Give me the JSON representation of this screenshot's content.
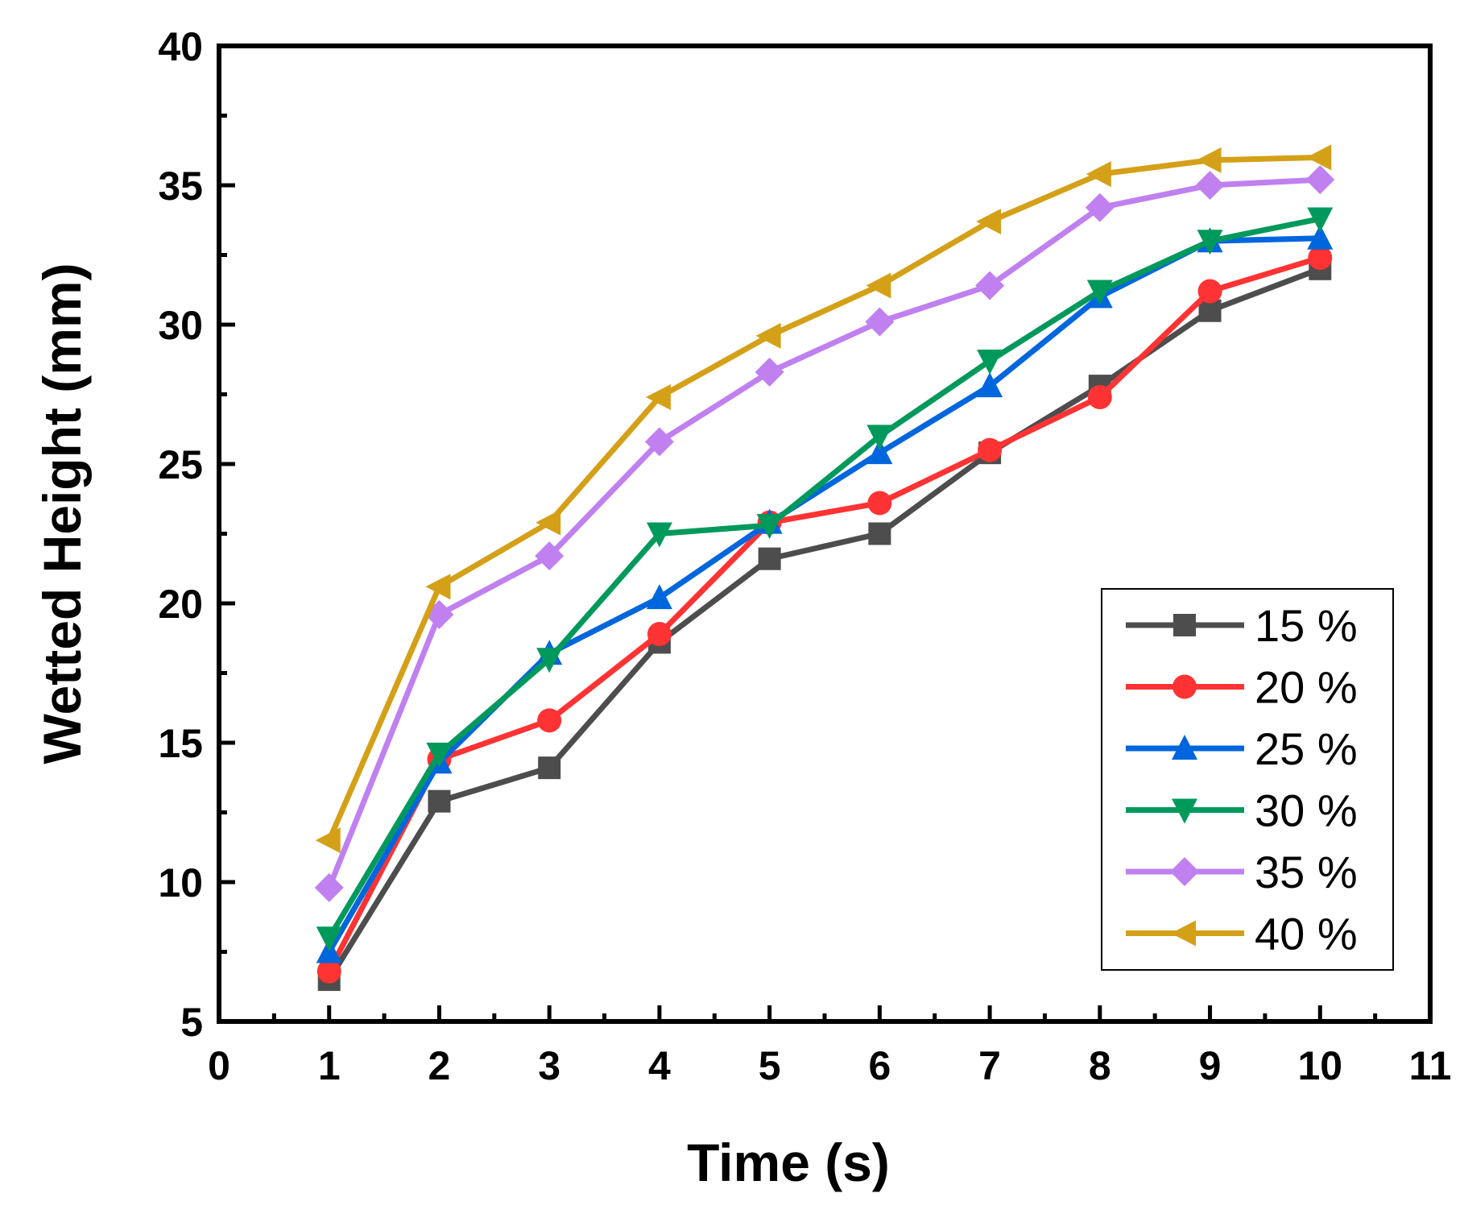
{
  "chart_data": {
    "type": "line",
    "xlabel": "Time (s)",
    "ylabel": "Wetted Height (mm)",
    "xlim": [
      0,
      11
    ],
    "ylim": [
      5,
      40
    ],
    "xticks": [
      0,
      1,
      2,
      3,
      4,
      5,
      6,
      7,
      8,
      9,
      10,
      11
    ],
    "yticks": [
      5,
      10,
      15,
      20,
      25,
      30,
      35,
      40
    ],
    "grid": false,
    "legend_position": "bottom-right",
    "x": [
      1,
      2,
      3,
      4,
      5,
      6,
      7,
      8,
      9,
      10
    ],
    "series": [
      {
        "name": "15 %",
        "color": "#4d4d4d",
        "marker": "square",
        "values": [
          6.5,
          12.9,
          14.1,
          18.6,
          21.6,
          22.5,
          25.4,
          27.8,
          30.5,
          32.0
        ]
      },
      {
        "name": "20 %",
        "color": "#ff3333",
        "marker": "circle",
        "values": [
          6.8,
          14.4,
          15.8,
          18.9,
          22.9,
          23.6,
          25.5,
          27.4,
          31.2,
          32.4
        ]
      },
      {
        "name": "25 %",
        "color": "#0066dd",
        "marker": "triangle-up",
        "values": [
          7.5,
          14.3,
          18.2,
          20.2,
          22.9,
          25.4,
          27.8,
          31.0,
          33.0,
          33.1
        ]
      },
      {
        "name": "30 %",
        "color": "#00995c",
        "marker": "triangle-down",
        "values": [
          8.0,
          14.6,
          18.0,
          22.5,
          22.8,
          26.0,
          28.7,
          31.2,
          33.0,
          33.8
        ]
      },
      {
        "name": "35 %",
        "color": "#c080f0",
        "marker": "diamond",
        "values": [
          9.8,
          19.6,
          21.7,
          25.8,
          28.3,
          30.1,
          31.4,
          34.2,
          35.0,
          35.2
        ]
      },
      {
        "name": "40 %",
        "color": "#d4a017",
        "marker": "triangle-left",
        "values": [
          11.5,
          20.6,
          22.9,
          27.4,
          29.6,
          31.4,
          33.7,
          35.4,
          35.9,
          36.0
        ]
      }
    ]
  }
}
